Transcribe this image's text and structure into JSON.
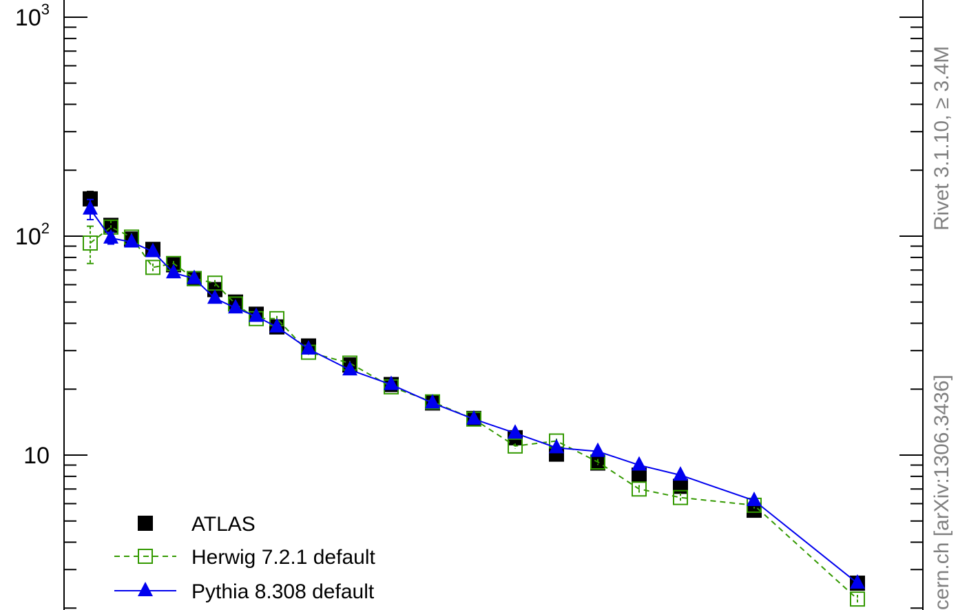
{
  "chart_data": {
    "type": "scatter",
    "yscale": "log",
    "ylim": [
      2.4,
      1000
    ],
    "xlim": [
      0,
      37
    ],
    "y_tick_labels": [
      {
        "value": 1000,
        "base": "10",
        "exp": "3"
      },
      {
        "value": 100,
        "base": "10",
        "exp": "2"
      },
      {
        "value": 10,
        "base": "10",
        "exp": ""
      }
    ],
    "legend_position": "bottom-left",
    "series": [
      {
        "name": "ATLAS",
        "color": "#000000",
        "marker": "filled-square",
        "line": "none",
        "x": [
          1,
          2,
          3,
          4,
          5,
          6,
          7,
          8,
          9,
          10,
          11.5,
          13.5,
          15.5,
          17.5,
          19.5,
          21.5,
          23.5,
          25.5,
          27.5,
          29.5,
          33,
          38
        ],
        "y": [
          148,
          112,
          97,
          87,
          74,
          64,
          57,
          50,
          44,
          38.5,
          31.5,
          25.8,
          21,
          17.3,
          14.7,
          12,
          10.1,
          9.2,
          8.1,
          7.2,
          5.6,
          2.6
        ],
        "yerr": [
          12,
          6,
          4,
          3,
          2,
          1.5,
          1.5,
          1,
          1,
          1,
          0.8,
          0.5,
          0.4,
          0.3,
          0.3,
          0.3,
          0.3,
          0.3,
          0.3,
          0.3,
          0.2,
          0.1
        ]
      },
      {
        "name": "Herwig 7.2.1 default",
        "color": "#339900",
        "marker": "open-square",
        "line": "dashed",
        "x": [
          1,
          2,
          3,
          4,
          5,
          6,
          7,
          8,
          9,
          10,
          11.5,
          13.5,
          15.5,
          17.5,
          19.5,
          21.5,
          23.5,
          25.5,
          27.5,
          29.5,
          33,
          38
        ],
        "y": [
          93,
          110,
          99,
          72,
          75,
          64,
          61,
          49,
          42,
          42,
          29.5,
          26.3,
          20.5,
          17.5,
          14.6,
          11,
          11.6,
          9.3,
          7,
          6.4,
          5.9,
          2.2
        ],
        "yerr": [
          18,
          8,
          4,
          3,
          2,
          2,
          2,
          1.5,
          1.2,
          1.2,
          0.8,
          0.6,
          0.5,
          0.4,
          0.3,
          0.3,
          0.3,
          0.3,
          0.3,
          0.3,
          0.2,
          0.1
        ]
      },
      {
        "name": "Pythia 8.308 default",
        "color": "#0000ee",
        "marker": "filled-triangle",
        "line": "solid",
        "x": [
          1,
          2,
          3,
          4,
          5,
          6,
          7,
          8,
          9,
          10,
          11.5,
          13.5,
          15.5,
          17.5,
          19.5,
          21.5,
          23.5,
          25.5,
          27.5,
          29.5,
          33,
          38
        ],
        "y": [
          133,
          98,
          94,
          85,
          68,
          64,
          52,
          47,
          43,
          38.5,
          30.5,
          24.5,
          21,
          17.3,
          14.6,
          12.6,
          10.8,
          10.4,
          9,
          8.1,
          6.2,
          2.6
        ],
        "yerr": [
          14,
          6,
          4,
          3,
          2,
          1.5,
          1.5,
          1,
          1,
          1,
          0.8,
          0.5,
          0.4,
          0.3,
          0.3,
          0.3,
          0.3,
          0.3,
          0.3,
          0.3,
          0.2,
          0.1
        ]
      }
    ],
    "side_labels": {
      "rivet": "Rivet 3.1.10, ≥ 3.4M",
      "source": "cern.ch [arXiv:1306.3436]"
    }
  }
}
